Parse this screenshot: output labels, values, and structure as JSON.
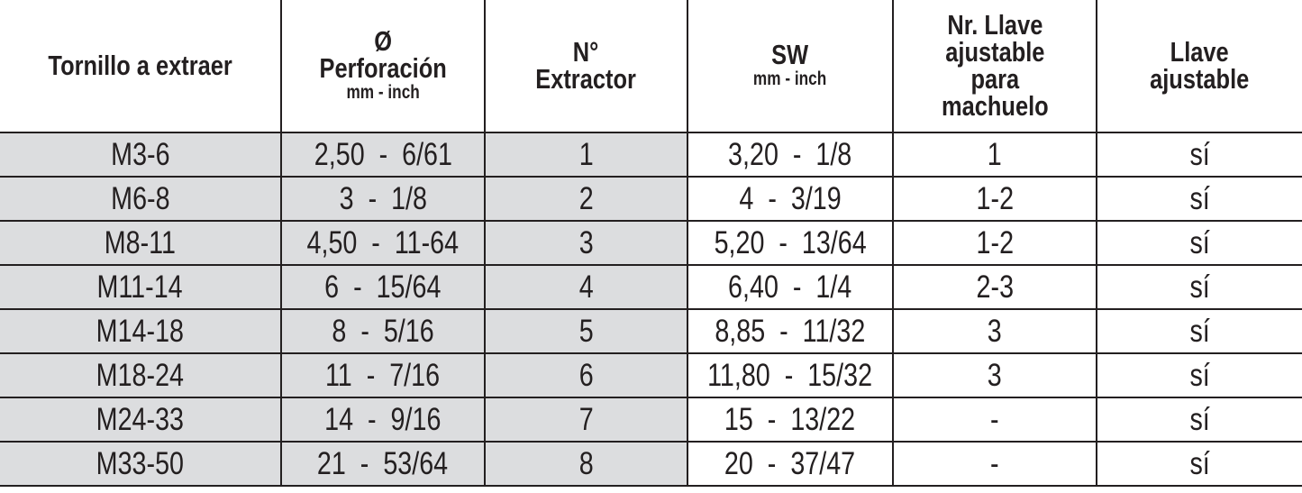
{
  "headers": [
    {
      "main": [
        "Tornillo a extraer"
      ],
      "sub": ""
    },
    {
      "main": [
        "Ø",
        "Perforación"
      ],
      "sub": "mm - inch"
    },
    {
      "main": [
        "N°",
        "Extractor"
      ],
      "sub": ""
    },
    {
      "main": [
        "SW"
      ],
      "sub": "mm - inch"
    },
    {
      "main": [
        "Nr. Llave",
        "ajustable",
        "para",
        "machuelo"
      ],
      "sub": ""
    },
    {
      "main": [
        "Llave",
        "ajustable"
      ],
      "sub": ""
    }
  ],
  "rows": [
    [
      "M3-6",
      "2,50  -  6/61",
      "1",
      "3,20  -  1/8",
      "1",
      "sí"
    ],
    [
      "M6-8",
      "3  -  1/8",
      "2",
      "4  -  3/19",
      "1-2",
      "sí"
    ],
    [
      "M8-11",
      "4,50  -  11-64",
      "3",
      "5,20  -  13/64",
      "1-2",
      "sí"
    ],
    [
      "M11-14",
      "6  -  15/64",
      "4",
      "6,40  -  1/4",
      "2-3",
      "sí"
    ],
    [
      "M14-18",
      "8  -  5/16",
      "5",
      "8,85  -  11/32",
      "3",
      "sí"
    ],
    [
      "M18-24",
      "11  -  7/16",
      "6",
      "11,80  -  15/32",
      "3",
      "sí"
    ],
    [
      "M24-33",
      "14  -  9/16",
      "7",
      "15  -  13/22",
      "-",
      "sí"
    ],
    [
      "M33-50",
      "21  -  53/64",
      "8",
      "20  -  37/47",
      "-",
      "sí"
    ]
  ],
  "colors": {
    "shaded_cell": "#dcdddf",
    "border": "#231f20",
    "text": "#231f20"
  }
}
